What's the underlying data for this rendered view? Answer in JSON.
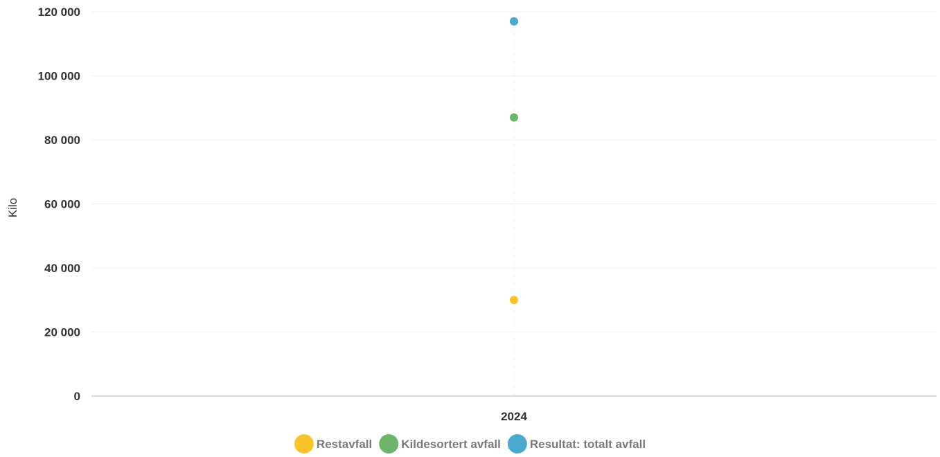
{
  "chart_data": {
    "type": "scatter",
    "title": "",
    "xlabel": "",
    "ylabel": "Kilo",
    "categories": [
      "2024"
    ],
    "ylim": [
      0,
      120000
    ],
    "yticks": [
      0,
      20000,
      40000,
      60000,
      80000,
      100000,
      120000
    ],
    "ytick_labels": [
      "0",
      "20 000",
      "40 000",
      "60 000",
      "80 000",
      "100 000",
      "120 000"
    ],
    "grid": true,
    "legend_position": "bottom-center",
    "series": [
      {
        "name": "Restavfall",
        "color": "#f7c52b",
        "values": [
          30000
        ]
      },
      {
        "name": "Kildesortert avfall",
        "color": "#6cb56b",
        "values": [
          87000
        ]
      },
      {
        "name": "Resultat: totalt avfall",
        "color": "#4aa9cf",
        "values": [
          117000
        ]
      }
    ]
  }
}
